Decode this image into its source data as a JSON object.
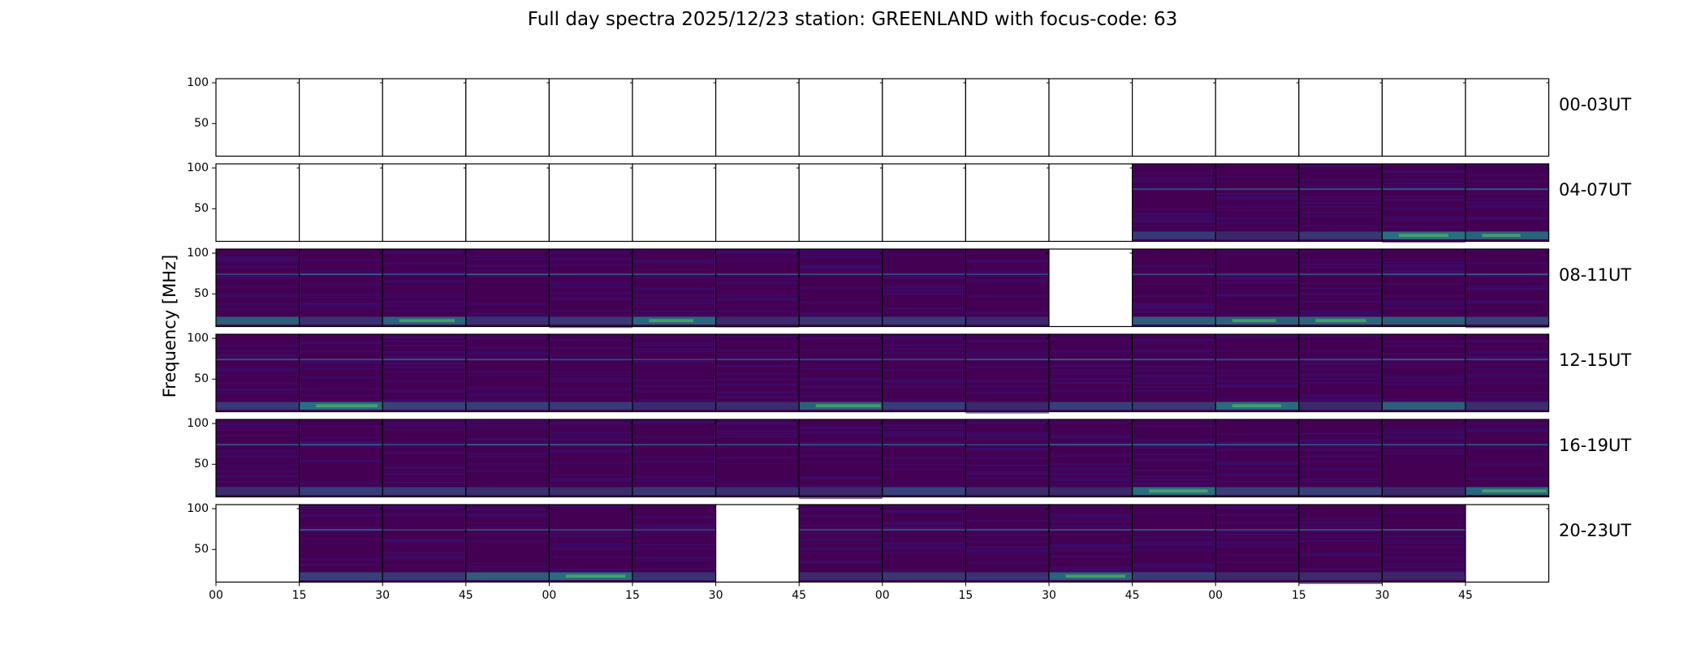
{
  "chart_data": {
    "type": "heatmap",
    "title": "Full day spectra 2025/12/23 station: GREENLAND with focus-code: 63",
    "xlabel": "",
    "ylabel": "Frequency [MHz]",
    "y_ticks": [
      "100",
      "50"
    ],
    "x_tick_labels": [
      "00",
      "15",
      "30",
      "45",
      "00",
      "15",
      "30",
      "45",
      "00",
      "15",
      "30",
      "45",
      "00",
      "15",
      "30",
      "45"
    ],
    "colormap": "viridis",
    "rows": [
      {
        "label": "00-03UT",
        "has_data": [
          0,
          0,
          0,
          0,
          0,
          0,
          0,
          0,
          0,
          0,
          0,
          0,
          0,
          0,
          0,
          0
        ]
      },
      {
        "label": "04-07UT",
        "has_data": [
          0,
          0,
          0,
          0,
          0,
          0,
          0,
          0,
          0,
          0,
          0,
          1,
          1,
          1,
          1,
          1
        ]
      },
      {
        "label": "08-11UT",
        "has_data": [
          1,
          1,
          1,
          1,
          1,
          1,
          1,
          1,
          1,
          1,
          0,
          1,
          1,
          1,
          1,
          1
        ]
      },
      {
        "label": "12-15UT",
        "has_data": [
          1,
          1,
          1,
          1,
          1,
          1,
          1,
          1,
          1,
          1,
          1,
          1,
          1,
          1,
          1,
          1
        ]
      },
      {
        "label": "16-19UT",
        "has_data": [
          1,
          1,
          1,
          1,
          1,
          1,
          1,
          1,
          1,
          1,
          1,
          1,
          1,
          1,
          1,
          1
        ]
      },
      {
        "label": "20-23UT",
        "has_data": [
          0,
          1,
          1,
          1,
          1,
          1,
          0,
          1,
          1,
          1,
          1,
          1,
          1,
          1,
          1,
          0
        ]
      }
    ]
  },
  "colors": {
    "background": "#440154",
    "dark": "#3b0f70",
    "mid": "#31688e",
    "teal": "#21918c",
    "bright": "#5ec962",
    "empty": "#ffffff"
  }
}
